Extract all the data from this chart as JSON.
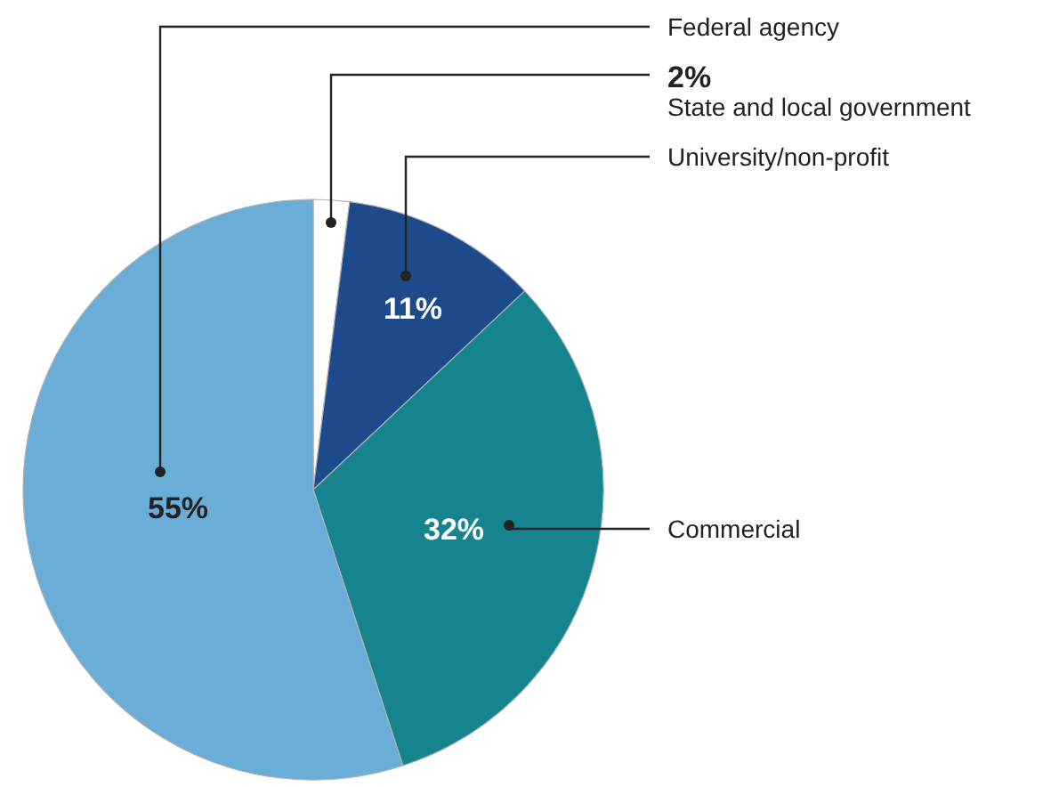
{
  "chart_data": {
    "type": "pie",
    "categories": [
      "State and local government",
      "University/non-profit",
      "Commercial",
      "Federal agency"
    ],
    "values": [
      2,
      11,
      32,
      55
    ],
    "colors": [
      "#ffffff",
      "#1c4a8a",
      "#15848f",
      "#6aaed8"
    ],
    "value_labels": [
      "2%",
      "11%",
      "32%",
      "55%"
    ]
  }
}
